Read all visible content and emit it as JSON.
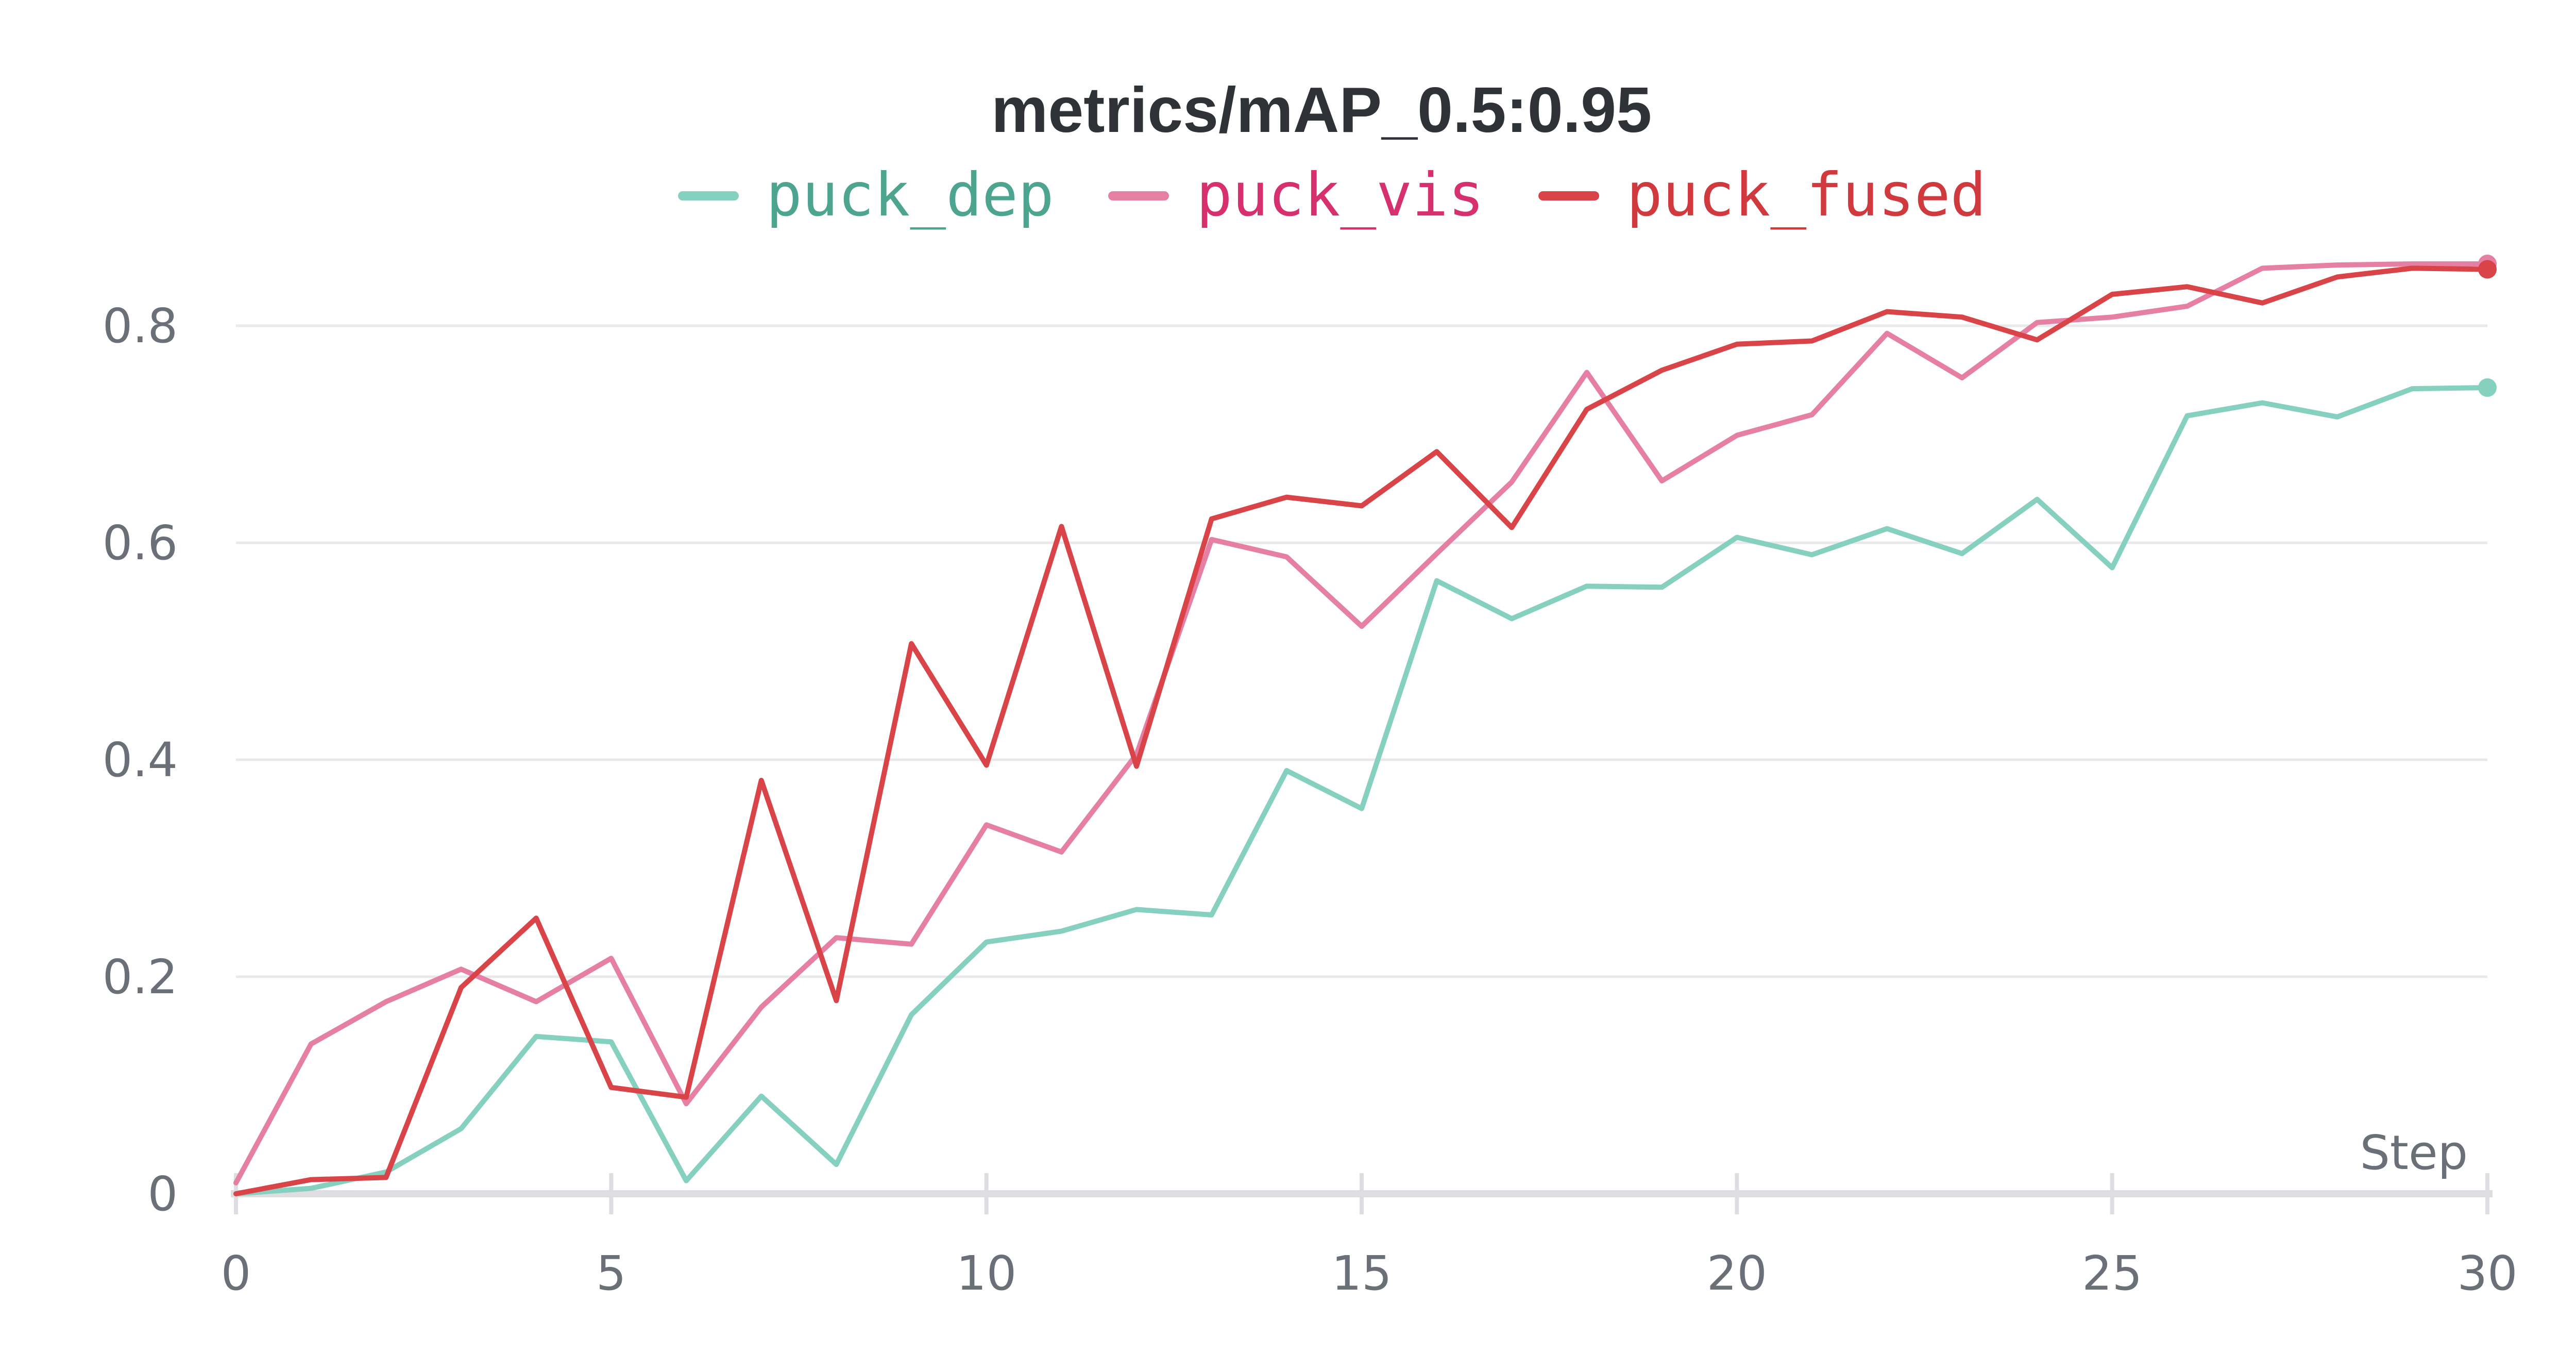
{
  "chart_data": {
    "type": "line",
    "title": "metrics/mAP_0.5:0.95",
    "xlabel": "Step",
    "ylabel": "",
    "xlim": [
      0,
      30
    ],
    "ylim": [
      0,
      0.9
    ],
    "xticks": [
      0,
      5,
      10,
      15,
      20,
      25,
      30
    ],
    "xtick_labels": [
      "0",
      "5",
      "10",
      "15",
      "20",
      "25",
      "30"
    ],
    "yticks": [
      0,
      0.2,
      0.4,
      0.6,
      0.8
    ],
    "ytick_labels": [
      "0",
      "0.2",
      "0.4",
      "0.6",
      "0.8"
    ],
    "grid": true,
    "legend_position": "top-center",
    "x": [
      0,
      1,
      2,
      3,
      4,
      5,
      6,
      7,
      8,
      9,
      10,
      11,
      12,
      13,
      14,
      15,
      16,
      17,
      18,
      19,
      20,
      21,
      22,
      23,
      24,
      25,
      26,
      27,
      28,
      29,
      30
    ],
    "series": [
      {
        "name": "puck_dep",
        "color": "#86d0bf",
        "text_color": "#4ea58f",
        "values": [
          0.0,
          0.005,
          0.02,
          0.06,
          0.145,
          0.14,
          0.012,
          0.09,
          0.027,
          0.165,
          0.232,
          0.242,
          0.262,
          0.257,
          0.39,
          0.355,
          0.565,
          0.53,
          0.56,
          0.559,
          0.605,
          0.589,
          0.613,
          0.59,
          0.64,
          0.577,
          0.717,
          0.729,
          0.716,
          0.742,
          0.743
        ]
      },
      {
        "name": "puck_vis",
        "color": "#e57fa4",
        "text_color": "#d6316e",
        "values": [
          0.01,
          0.138,
          0.177,
          0.207,
          0.177,
          0.217,
          0.083,
          0.172,
          0.236,
          0.23,
          0.34,
          0.315,
          0.405,
          0.603,
          0.587,
          0.523,
          0.59,
          0.656,
          0.757,
          0.657,
          0.699,
          0.718,
          0.793,
          0.752,
          0.803,
          0.808,
          0.818,
          0.853,
          0.856,
          0.857,
          0.857
        ]
      },
      {
        "name": "puck_fused",
        "color": "#d94448",
        "text_color": "#d0393d",
        "values": [
          0.0,
          0.013,
          0.015,
          0.19,
          0.254,
          0.098,
          0.089,
          0.381,
          0.178,
          0.507,
          0.395,
          0.615,
          0.394,
          0.622,
          0.642,
          0.634,
          0.684,
          0.614,
          0.723,
          0.759,
          0.783,
          0.786,
          0.813,
          0.808,
          0.787,
          0.829,
          0.836,
          0.821,
          0.845,
          0.853,
          0.852
        ]
      }
    ]
  }
}
